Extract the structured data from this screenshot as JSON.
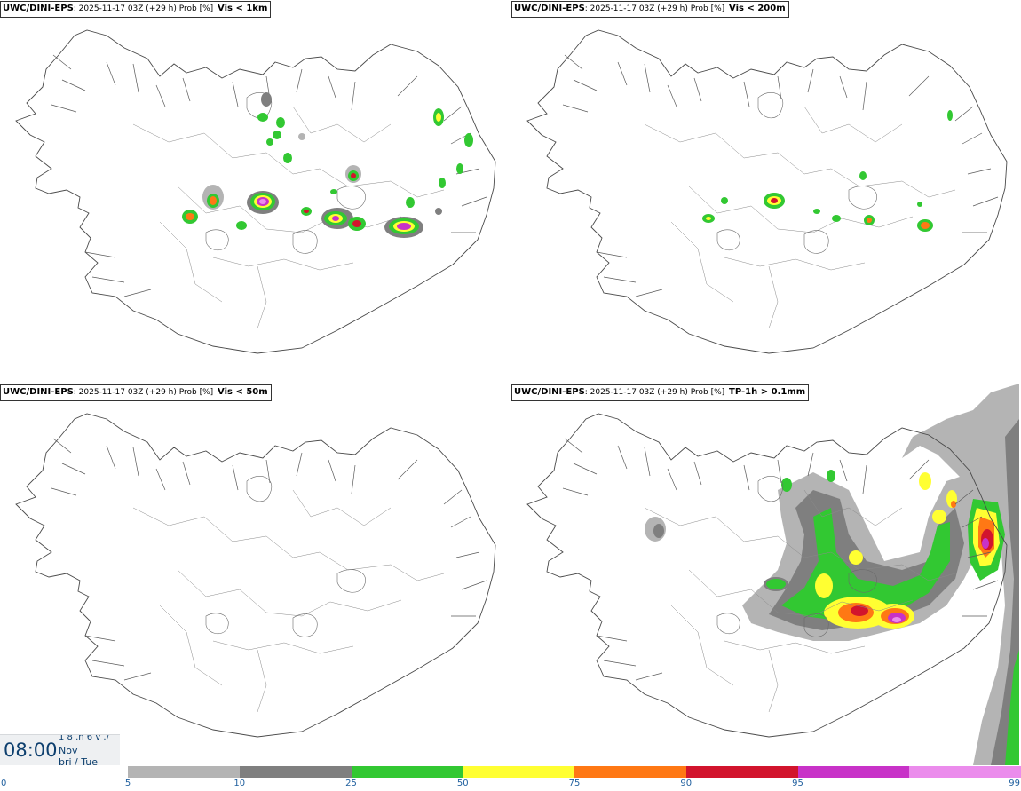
{
  "panels": [
    {
      "model": "UWC/DINI-EPS",
      "info": ": 2025-11-17 03Z (+29 h) Prob [%]",
      "variable": "Vis < 1km"
    },
    {
      "model": "UWC/DINI-EPS",
      "info": ": 2025-11-17 03Z (+29 h) Prob [%]",
      "variable": "Vis < 200m"
    },
    {
      "model": "UWC/DINI-EPS",
      "info": ": 2025-11-17 03Z (+29 h) Prob [%]",
      "variable": "Vis < 50m"
    },
    {
      "model": "UWC/DINI-EPS",
      "info": ": 2025-11-17 03Z (+29 h) Prob [%]",
      "variable": "TP-1h > 0.1mm"
    }
  ],
  "time_box": {
    "time": "08:00",
    "day_top": "1 8 .n 6 v ./",
    "month": "Nov",
    "weekday": "þri / Tue"
  },
  "legend": {
    "ticks": [
      "0",
      "5",
      "10",
      "25",
      "50",
      "75",
      "90",
      "95",
      "99"
    ],
    "colors": [
      "#b4b4b4",
      "#7f7f7f",
      "#32c832",
      "#ffff32",
      "#ff7814",
      "#d2142d",
      "#c832c8",
      "#eb8cec"
    ]
  }
}
